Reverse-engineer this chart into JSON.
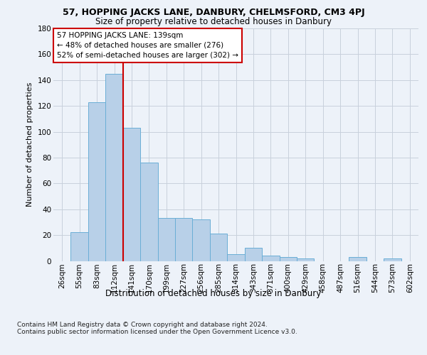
{
  "title1": "57, HOPPING JACKS LANE, DANBURY, CHELMSFORD, CM3 4PJ",
  "title2": "Size of property relative to detached houses in Danbury",
  "xlabel": "Distribution of detached houses by size in Danbury",
  "ylabel": "Number of detached properties",
  "footnote": "Contains HM Land Registry data © Crown copyright and database right 2024.\nContains public sector information licensed under the Open Government Licence v3.0.",
  "annotation_line1": "57 HOPPING JACKS LANE: 139sqm",
  "annotation_line2": "← 48% of detached houses are smaller (276)",
  "annotation_line3": "52% of semi-detached houses are larger (302) →",
  "bar_categories": [
    "26sqm",
    "55sqm",
    "83sqm",
    "112sqm",
    "141sqm",
    "170sqm",
    "199sqm",
    "227sqm",
    "256sqm",
    "285sqm",
    "314sqm",
    "343sqm",
    "371sqm",
    "400sqm",
    "429sqm",
    "458sqm",
    "487sqm",
    "516sqm",
    "544sqm",
    "573sqm",
    "602sqm"
  ],
  "bar_values": [
    0,
    22,
    123,
    145,
    103,
    76,
    33,
    33,
    32,
    21,
    5,
    10,
    4,
    3,
    2,
    0,
    0,
    3,
    0,
    2,
    0
  ],
  "bar_color": "#b8d0e8",
  "bar_edge_color": "#6aaed6",
  "vline_color": "#cc0000",
  "vline_x": 3.5,
  "ylim": [
    0,
    180
  ],
  "yticks": [
    0,
    20,
    40,
    60,
    80,
    100,
    120,
    140,
    160,
    180
  ],
  "background_color": "#edf2f9",
  "grid_color": "#c8d0dc",
  "title1_fontsize": 9.0,
  "title2_fontsize": 8.5,
  "ylabel_fontsize": 8.0,
  "xlabel_fontsize": 8.5,
  "tick_fontsize": 7.5,
  "annot_fontsize": 7.5,
  "footnote_fontsize": 6.5
}
